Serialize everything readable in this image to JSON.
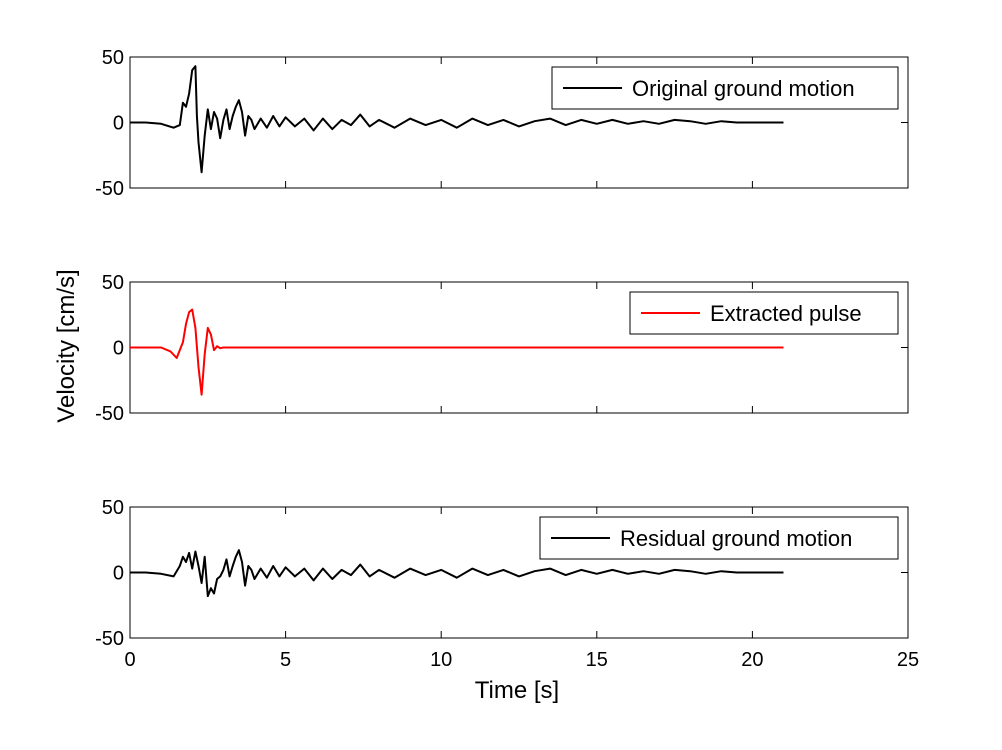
{
  "figure": {
    "ylabel": "Velocity [cm/s]",
    "xlabel": "Time [s]"
  },
  "chart_data": [
    {
      "type": "line",
      "title": "",
      "xlim": [
        0,
        25
      ],
      "ylim": [
        -50,
        50
      ],
      "xticks": [
        0,
        5,
        10,
        15,
        20,
        25
      ],
      "yticks": [
        50,
        0,
        -50
      ],
      "show_xtick_labels": false,
      "grid": false,
      "legend_position": "top-right",
      "series": [
        {
          "name": "Original ground motion",
          "color": "#000000",
          "x": [
            0,
            0.5,
            1.0,
            1.4,
            1.6,
            1.7,
            1.8,
            1.9,
            2.0,
            2.1,
            2.15,
            2.2,
            2.3,
            2.4,
            2.5,
            2.6,
            2.7,
            2.8,
            2.9,
            3.0,
            3.1,
            3.2,
            3.3,
            3.4,
            3.5,
            3.6,
            3.7,
            3.8,
            3.9,
            4.0,
            4.2,
            4.4,
            4.6,
            4.8,
            5.0,
            5.3,
            5.6,
            5.9,
            6.2,
            6.5,
            6.8,
            7.1,
            7.4,
            7.7,
            8.0,
            8.5,
            9.0,
            9.5,
            10.0,
            10.5,
            11.0,
            11.5,
            12.0,
            12.5,
            13.0,
            13.5,
            14.0,
            14.5,
            15.0,
            15.5,
            16.0,
            16.5,
            17.0,
            17.5,
            18.0,
            18.5,
            19.0,
            19.5,
            20.0,
            20.5,
            21.0
          ],
          "values": [
            0,
            0,
            -1,
            -4,
            -2,
            15,
            12,
            22,
            40,
            43,
            5,
            -15,
            -38,
            -10,
            10,
            -5,
            8,
            3,
            -12,
            2,
            10,
            -5,
            5,
            12,
            17,
            8,
            -10,
            5,
            2,
            -5,
            3,
            -4,
            5,
            -3,
            4,
            -3,
            3,
            -6,
            3,
            -5,
            2,
            -2,
            6,
            -3,
            2,
            -4,
            3,
            -2,
            2,
            -4,
            3,
            -2,
            2,
            -3,
            1,
            3,
            -2,
            2,
            -1,
            2,
            -1,
            1,
            -1,
            2,
            1,
            -1,
            1,
            0,
            0,
            0,
            0
          ]
        }
      ]
    },
    {
      "type": "line",
      "title": "",
      "xlim": [
        0,
        25
      ],
      "ylim": [
        -50,
        50
      ],
      "xticks": [
        0,
        5,
        10,
        15,
        20,
        25
      ],
      "yticks": [
        50,
        0,
        -50
      ],
      "show_xtick_labels": false,
      "grid": false,
      "legend_position": "top-right",
      "series": [
        {
          "name": "Extracted pulse",
          "color": "#ff0000",
          "x": [
            0,
            1.0,
            1.3,
            1.5,
            1.7,
            1.8,
            1.9,
            2.0,
            2.1,
            2.2,
            2.3,
            2.4,
            2.5,
            2.6,
            2.7,
            2.8,
            2.9,
            3.0,
            21.0
          ],
          "values": [
            0,
            0,
            -3,
            -8,
            4,
            18,
            27,
            29,
            15,
            -15,
            -36,
            -5,
            15,
            10,
            -2,
            1,
            -0.5,
            0,
            0
          ]
        }
      ]
    },
    {
      "type": "line",
      "title": "",
      "xlim": [
        0,
        25
      ],
      "ylim": [
        -50,
        50
      ],
      "xticks": [
        0,
        5,
        10,
        15,
        20,
        25
      ],
      "yticks": [
        50,
        0,
        -50
      ],
      "show_xtick_labels": true,
      "grid": false,
      "legend_position": "top-right",
      "series": [
        {
          "name": "Residual ground motion",
          "color": "#000000",
          "x": [
            0,
            0.5,
            1.0,
            1.4,
            1.6,
            1.7,
            1.8,
            1.9,
            2.0,
            2.1,
            2.2,
            2.3,
            2.4,
            2.5,
            2.6,
            2.7,
            2.8,
            2.9,
            3.0,
            3.1,
            3.2,
            3.3,
            3.4,
            3.5,
            3.6,
            3.7,
            3.8,
            3.9,
            4.0,
            4.2,
            4.4,
            4.6,
            4.8,
            5.0,
            5.3,
            5.6,
            5.9,
            6.2,
            6.5,
            6.8,
            7.1,
            7.4,
            7.7,
            8.0,
            8.5,
            9.0,
            9.5,
            10.0,
            10.5,
            11.0,
            11.5,
            12.0,
            12.5,
            13.0,
            13.5,
            14.0,
            14.5,
            15.0,
            15.5,
            16.0,
            16.5,
            17.0,
            17.5,
            18.0,
            18.5,
            19.0,
            19.5,
            20.0,
            20.5,
            21.0
          ],
          "values": [
            0,
            0,
            -1,
            -3,
            5,
            12,
            8,
            15,
            3,
            16,
            5,
            -8,
            12,
            -18,
            -12,
            -16,
            -5,
            -3,
            2,
            10,
            -3,
            5,
            12,
            17,
            8,
            -10,
            5,
            2,
            -5,
            3,
            -4,
            5,
            -3,
            4,
            -3,
            3,
            -6,
            3,
            -5,
            2,
            -2,
            6,
            -3,
            2,
            -4,
            3,
            -2,
            2,
            -4,
            3,
            -2,
            2,
            -3,
            1,
            3,
            -2,
            2,
            -1,
            2,
            -1,
            1,
            -1,
            2,
            1,
            -1,
            1,
            0,
            0,
            0,
            0
          ]
        }
      ]
    }
  ]
}
